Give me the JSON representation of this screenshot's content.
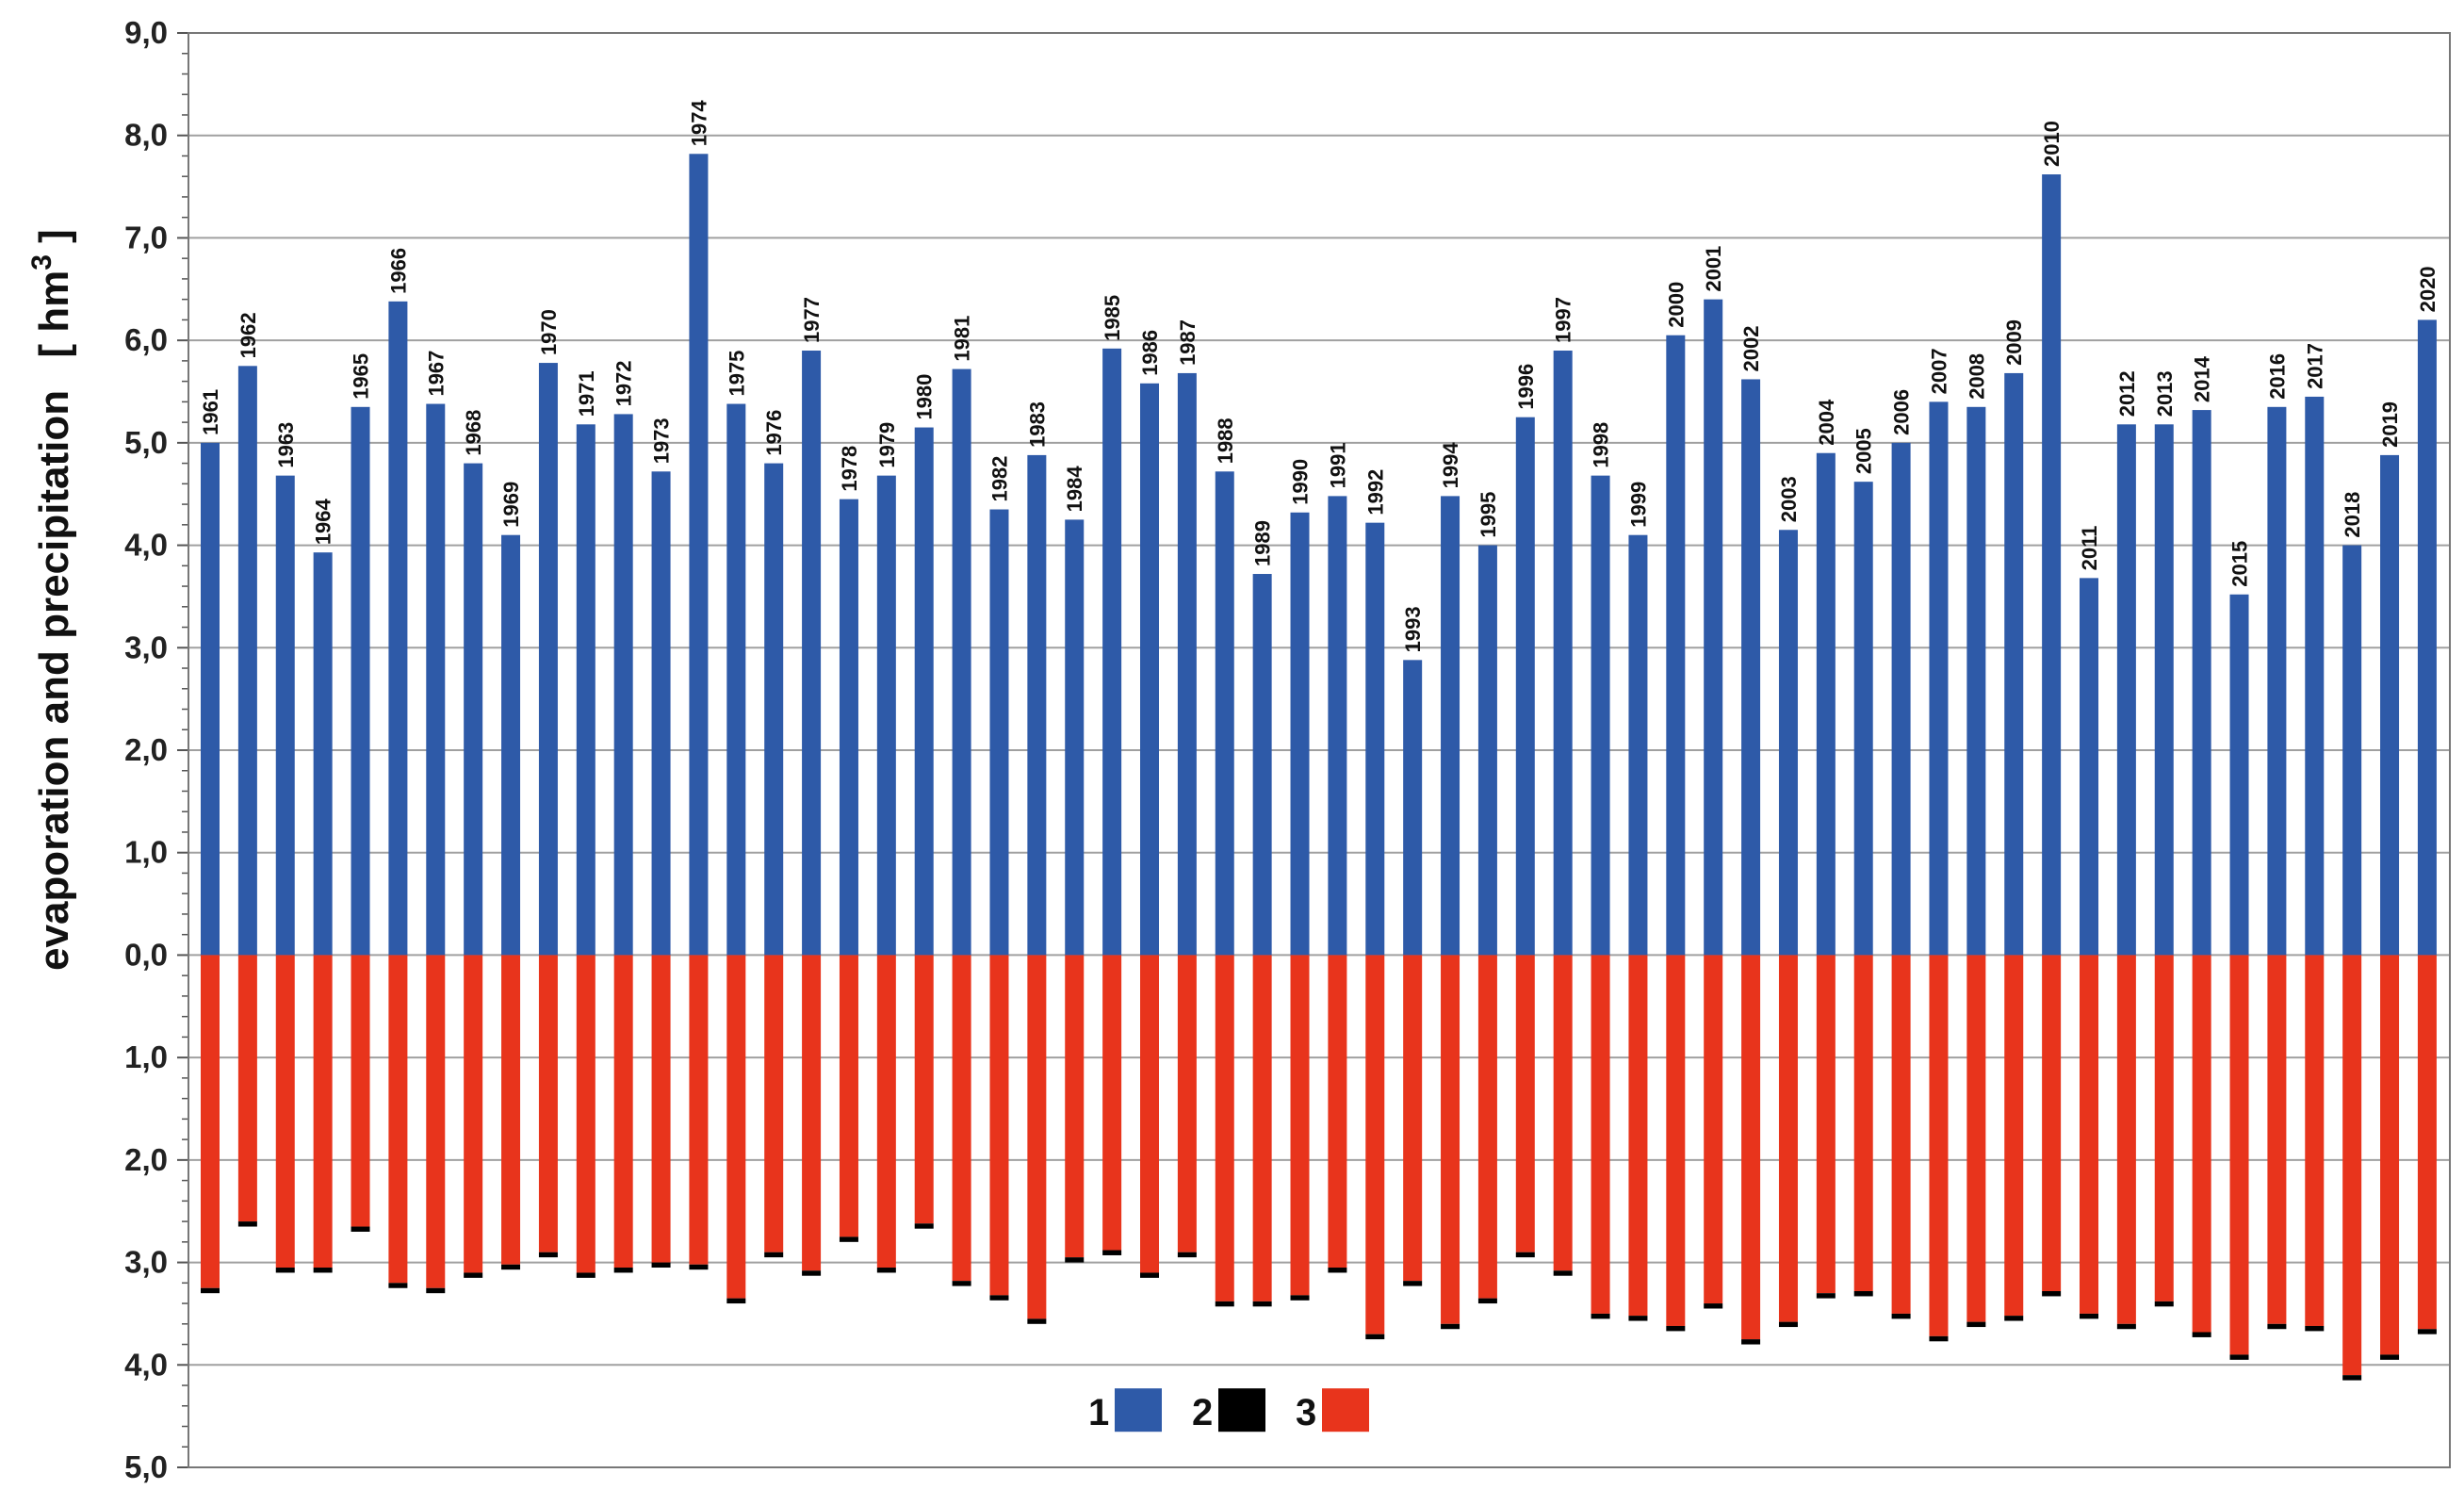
{
  "chart_data": {
    "type": "bar",
    "ylabel": "evaporation and precipitation",
    "ylabel_unit": "[ hm³ ]",
    "ylim": [
      -5,
      9
    ],
    "grid": true,
    "legend_placement": "bottom-center",
    "yticks": [
      {
        "value": 9,
        "label": "9,0"
      },
      {
        "value": 8,
        "label": "8,0"
      },
      {
        "value": 7,
        "label": "7,0"
      },
      {
        "value": 6,
        "label": "6,0"
      },
      {
        "value": 5,
        "label": "5,0"
      },
      {
        "value": 4,
        "label": "4,0"
      },
      {
        "value": 3,
        "label": "3,0"
      },
      {
        "value": 2,
        "label": "2,0"
      },
      {
        "value": 1,
        "label": "1,0"
      },
      {
        "value": 0,
        "label": "0,0"
      },
      {
        "value": -1,
        "label": "1,0"
      },
      {
        "value": -2,
        "label": "2,0"
      },
      {
        "value": -3,
        "label": "3,0"
      },
      {
        "value": -4,
        "label": "4,0"
      },
      {
        "value": -5,
        "label": "5,0"
      }
    ],
    "categories": [
      "1961",
      "1962",
      "1963",
      "1964",
      "1965",
      "1966",
      "1967",
      "1968",
      "1969",
      "1970",
      "1971",
      "1972",
      "1973",
      "1974",
      "1975",
      "1976",
      "1977",
      "1978",
      "1979",
      "1980",
      "1981",
      "1982",
      "1983",
      "1984",
      "1985",
      "1986",
      "1987",
      "1988",
      "1989",
      "1990",
      "1991",
      "1992",
      "1993",
      "1994",
      "1995",
      "1996",
      "1997",
      "1998",
      "1999",
      "2000",
      "2001",
      "2002",
      "2003",
      "2004",
      "2005",
      "2006",
      "2007",
      "2008",
      "2009",
      "2010",
      "2011",
      "2012",
      "2013",
      "2014",
      "2015",
      "2016",
      "2017",
      "2018",
      "2019",
      "2020"
    ],
    "series": [
      {
        "name": "1",
        "color": "#2e5aa8",
        "values": [
          5.0,
          5.75,
          4.68,
          3.93,
          5.35,
          6.38,
          5.38,
          4.8,
          4.1,
          5.78,
          5.18,
          5.28,
          4.72,
          7.82,
          5.38,
          4.8,
          5.9,
          4.45,
          4.68,
          5.15,
          5.72,
          4.35,
          4.88,
          4.25,
          5.92,
          5.58,
          5.68,
          4.72,
          3.72,
          4.32,
          4.48,
          4.22,
          2.88,
          4.48,
          4.0,
          5.25,
          5.9,
          4.68,
          4.1,
          6.05,
          6.4,
          5.62,
          4.15,
          4.9,
          4.62,
          5.0,
          5.4,
          5.35,
          5.68,
          7.62,
          3.68,
          5.18,
          5.18,
          5.32,
          3.52,
          5.35,
          5.45,
          4.0,
          4.88,
          6.2
        ]
      },
      {
        "name": "2",
        "color": "#000000",
        "values": [
          0.05,
          0.05,
          0.05,
          0.05,
          0.05,
          0.05,
          0.05,
          0.05,
          0.05,
          0.05,
          0.05,
          0.05,
          0.05,
          0.05,
          0.05,
          0.05,
          0.05,
          0.05,
          0.05,
          0.05,
          0.05,
          0.05,
          0.05,
          0.05,
          0.05,
          0.05,
          0.05,
          0.05,
          0.05,
          0.05,
          0.05,
          0.05,
          0.05,
          0.05,
          0.05,
          0.05,
          0.05,
          0.05,
          0.05,
          0.05,
          0.05,
          0.05,
          0.05,
          0.05,
          0.05,
          0.05,
          0.05,
          0.05,
          0.05,
          0.05,
          0.05,
          0.05,
          0.05,
          0.05,
          0.05,
          0.05,
          0.05,
          0.05,
          0.05,
          0.05
        ]
      },
      {
        "name": "3",
        "color": "#e8341c",
        "values": [
          3.25,
          2.6,
          3.05,
          3.05,
          2.65,
          3.2,
          3.25,
          3.1,
          3.02,
          2.9,
          3.1,
          3.05,
          3.0,
          3.02,
          3.35,
          2.9,
          3.08,
          2.75,
          3.05,
          2.62,
          3.18,
          3.32,
          3.55,
          2.95,
          2.88,
          3.1,
          2.9,
          3.38,
          3.38,
          3.32,
          3.05,
          3.7,
          3.18,
          3.6,
          3.35,
          2.9,
          3.08,
          3.5,
          3.52,
          3.62,
          3.4,
          3.75,
          3.58,
          3.3,
          3.28,
          3.5,
          3.72,
          3.58,
          3.52,
          3.28,
          3.5,
          3.6,
          3.38,
          3.68,
          3.9,
          3.6,
          3.62,
          4.1,
          3.9,
          3.65
        ]
      }
    ]
  }
}
